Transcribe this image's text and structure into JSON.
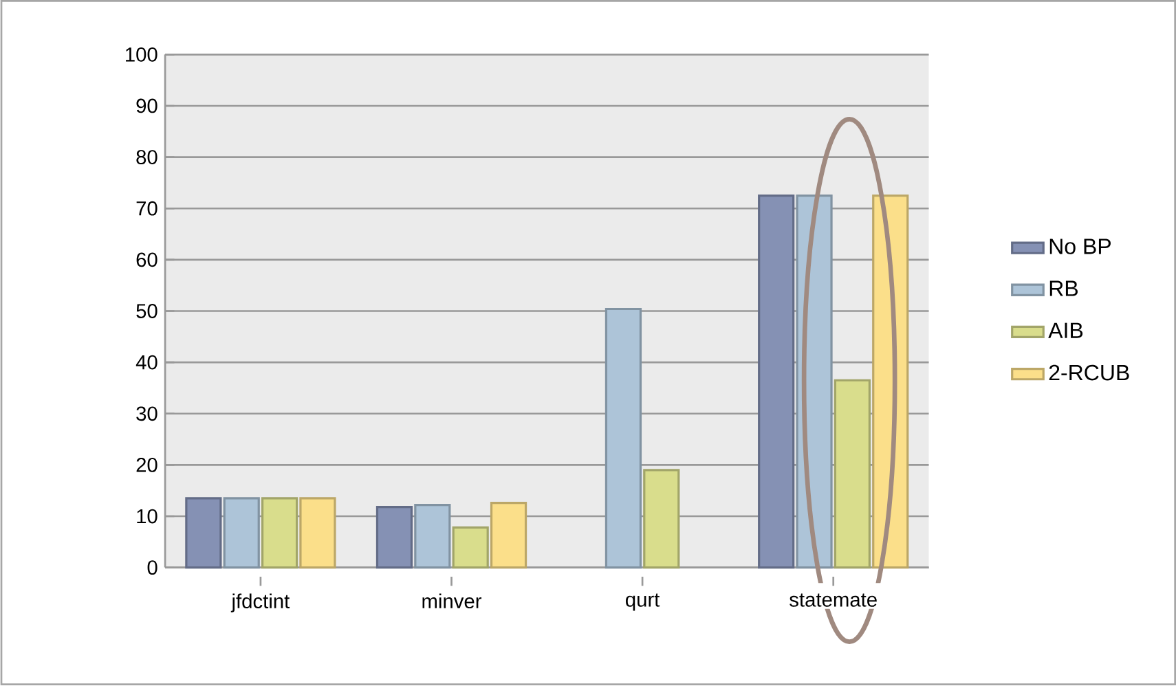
{
  "chart_data": {
    "type": "bar",
    "categories": [
      "jfdctint",
      "minver",
      "qurt",
      "statemate"
    ],
    "series": [
      {
        "name": "No BP",
        "color": "#8591b4",
        "values": [
          13.5,
          11.8,
          null,
          72.5
        ]
      },
      {
        "name": "RB",
        "color": "#adc4d8",
        "values": [
          13.5,
          12.2,
          50.4,
          72.5
        ]
      },
      {
        "name": "AIB",
        "color": "#d9dd8c",
        "values": [
          13.5,
          7.8,
          19,
          36.5
        ]
      },
      {
        "name": "2-RCUB",
        "color": "#fbdf8a",
        "values": [
          13.5,
          12.6,
          null,
          72.5
        ]
      }
    ],
    "ylim": [
      0,
      100
    ],
    "yticks": [
      0,
      10,
      20,
      30,
      40,
      50,
      60,
      70,
      80,
      90,
      100
    ],
    "grid": "y",
    "legend": "right"
  }
}
